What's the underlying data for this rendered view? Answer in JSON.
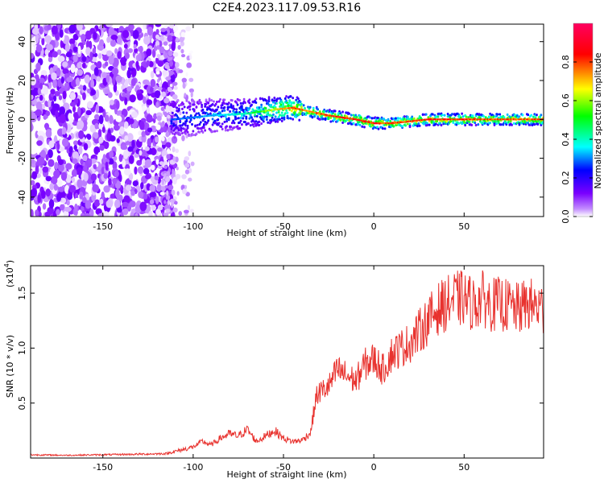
{
  "title": "C2E4.2023.117.09.53.R16",
  "chart_data": [
    {
      "type": "heatmap",
      "xlabel": "Height of straight line (km)",
      "ylabel": "Frequency (Hz)",
      "xlim": [
        -190,
        94
      ],
      "ylim": [
        -50,
        49
      ],
      "xticks": [
        -150,
        -100,
        -50,
        0,
        50
      ],
      "yticks": [
        -40,
        -20,
        0,
        20,
        40
      ],
      "colorbar": {
        "label": "Normalized spectral amplitude",
        "range": [
          0.0,
          1.0
        ],
        "ticks": [
          0.0,
          0.2,
          0.4,
          0.6,
          0.8
        ],
        "tick_labels": [
          "0.0",
          "0.2",
          "0.4",
          "0.6",
          "0.8"
        ],
        "colors": [
          "#ffffff",
          "#7a00ff",
          "#0000ff",
          "#00ffff",
          "#00ff00",
          "#ffff00",
          "#ff0000",
          "#ff0060"
        ]
      },
      "ridge": {
        "description_points_x": [
          -110,
          -90,
          -70,
          -55,
          -45,
          -35,
          -25,
          -10,
          0,
          10,
          30,
          60,
          94
        ],
        "frequency_hz": [
          0,
          2,
          3,
          5,
          6,
          4,
          2,
          0,
          -2,
          -2,
          0,
          0,
          0
        ],
        "peak_amplitude": [
          0.3,
          0.35,
          0.45,
          0.7,
          0.85,
          0.8,
          0.9,
          0.9,
          0.9,
          0.85,
          0.9,
          0.85,
          0.85
        ]
      },
      "grid": false
    },
    {
      "type": "line",
      "xlabel": "Height of straight line (km)",
      "ylabel": "SNR (10 * v/v)",
      "y_multiplier": "(x10^4)",
      "xlim": [
        -190,
        94
      ],
      "ylim": [
        0,
        17500
      ],
      "xticks": [
        -150,
        -100,
        -50,
        0,
        50
      ],
      "yticks": [
        5000,
        10000,
        15000
      ],
      "ytick_labels": [
        "0.5",
        "1.0",
        "1.5"
      ],
      "color": "#e8322e",
      "x": [
        -190,
        -170,
        -150,
        -130,
        -115,
        -105,
        -100,
        -95,
        -90,
        -85,
        -80,
        -75,
        -70,
        -65,
        -60,
        -55,
        -50,
        -45,
        -40,
        -35,
        -32,
        -30,
        -25,
        -20,
        -15,
        -10,
        -5,
        0,
        5,
        10,
        15,
        20,
        25,
        30,
        35,
        40,
        45,
        50,
        55,
        60,
        65,
        70,
        75,
        80,
        85,
        90,
        94
      ],
      "y": [
        300,
        250,
        300,
        350,
        400,
        800,
        1000,
        1500,
        1200,
        1800,
        2200,
        2000,
        2600,
        1500,
        2000,
        2500,
        1800,
        1500,
        1600,
        2300,
        5500,
        6000,
        6500,
        8000,
        7500,
        7000,
        8500,
        9000,
        8000,
        9500,
        10000,
        10500,
        11500,
        12500,
        13500,
        14000,
        14500,
        14500,
        14000,
        14500,
        14000,
        14000,
        13800,
        13500,
        14000,
        13800,
        13500
      ]
    }
  ],
  "labels": {
    "top_xlabel": "Height of straight line (km)",
    "top_ylabel": "Frequency (Hz)",
    "bottom_xlabel": "Height of straight line (km)",
    "bottom_ylabel": "SNR (10 * v/v)",
    "bottom_multiplier": "(x10",
    "bottom_multiplier_exp": "4",
    "bottom_multiplier_close": ")",
    "colorbar_label": "Normalized spectral amplitude"
  }
}
